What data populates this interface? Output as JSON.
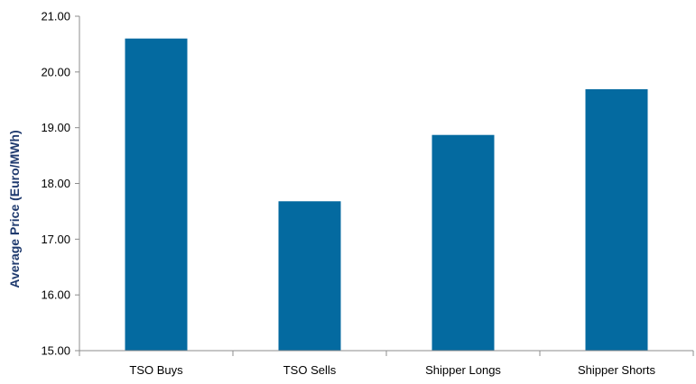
{
  "chart_data": {
    "type": "bar",
    "title": "",
    "xlabel": "",
    "ylabel": "Average Price (Euro/MWh)",
    "categories": [
      "TSO Buys",
      "TSO Sells",
      "Shipper Longs",
      "Shipper Shorts"
    ],
    "values": [
      20.6,
      17.68,
      18.87,
      19.69
    ],
    "ylim": [
      15.0,
      21.0
    ],
    "yticks": [
      "15.00",
      "16.00",
      "17.00",
      "18.00",
      "19.00",
      "20.00",
      "21.00"
    ],
    "grid": false,
    "legend": "none"
  },
  "colors": {
    "bar": "#046aa0",
    "ylabel": "#1f3a6e",
    "axis": "#8c8c8c"
  }
}
